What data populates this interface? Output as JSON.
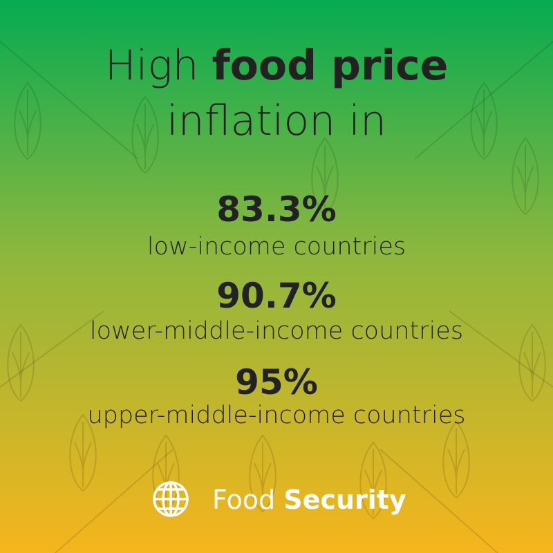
{
  "header": {
    "title_start": "High",
    "title_bold": "food price",
    "title_end": "inflation in"
  },
  "stats": [
    {
      "value": "83.3%",
      "label": "low-income countries"
    },
    {
      "value": "90.7%",
      "label": "lower-middle-income countries"
    },
    {
      "value": "95%",
      "label": "upper-middle-income countries"
    }
  ],
  "footer": {
    "brand_light": "Food",
    "brand_bold": "Security"
  }
}
